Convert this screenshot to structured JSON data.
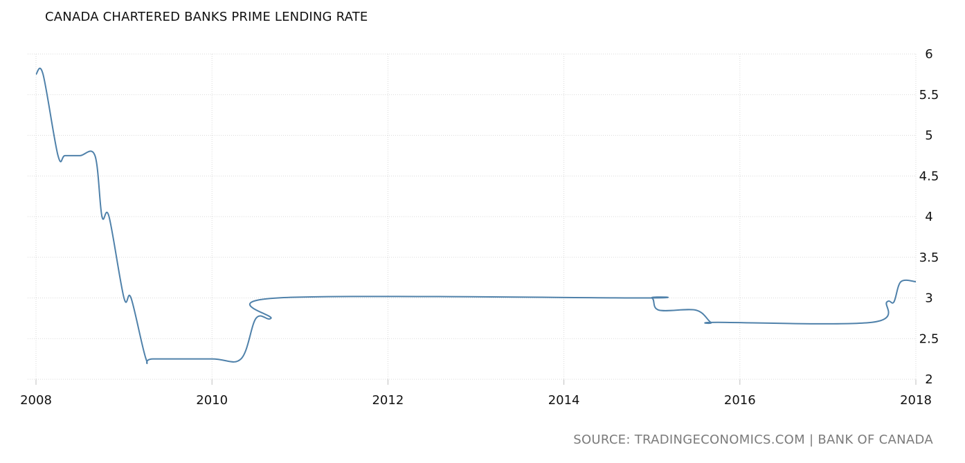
{
  "chart_data": {
    "type": "line",
    "title": "CANADA CHARTERED BANKS PRIME LENDING RATE",
    "source": "SOURCE: TRADINGECONOMICS.COM | BANK OF CANADA",
    "xlim": [
      2008,
      2018
    ],
    "ylim": [
      2,
      6
    ],
    "x_ticks": [
      "2008",
      "2010",
      "2012",
      "2014",
      "2016",
      "2018"
    ],
    "y_ticks": [
      "2",
      "2.5",
      "3",
      "3.5",
      "4",
      "4.5",
      "5",
      "5.5",
      "6"
    ],
    "grid": true,
    "y_axis_side": "right",
    "line_color": "#4f81aa",
    "series": [
      {
        "x": [
          2008.0,
          2008.08,
          2008.25,
          2008.33,
          2008.5,
          2008.67,
          2008.75,
          2008.83,
          2009.0,
          2009.08,
          2009.25,
          2009.33,
          2010.0,
          2010.33,
          2010.5,
          2010.67,
          2010.75,
          2014.83,
          2015.0,
          2015.08,
          2015.5,
          2015.67,
          2015.75,
          2017.5,
          2017.67,
          2017.75,
          2017.83,
          2018.0
        ],
        "values": [
          5.75,
          5.75,
          4.75,
          4.75,
          4.75,
          4.75,
          4.0,
          4.0,
          3.0,
          3.0,
          2.25,
          2.25,
          2.25,
          2.25,
          2.75,
          2.75,
          3.0,
          3.0,
          3.0,
          2.85,
          2.85,
          2.7,
          2.7,
          2.7,
          2.95,
          2.95,
          3.2,
          3.2
        ]
      }
    ]
  }
}
